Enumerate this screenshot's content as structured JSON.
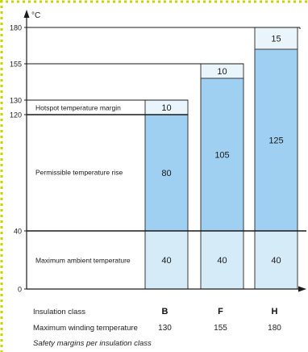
{
  "chart_data": {
    "type": "bar",
    "ylabel": "°C",
    "ylim": [
      0,
      180
    ],
    "y_ticks": [
      0,
      40,
      120,
      130,
      155,
      180
    ],
    "categories": [
      "B",
      "F",
      "H"
    ],
    "series": [
      {
        "name": "Maximum ambient temperature",
        "values": [
          40,
          40,
          40
        ]
      },
      {
        "name": "Permissible temperature rise",
        "values": [
          80,
          105,
          125
        ]
      },
      {
        "name": "Hotspot temperature margin",
        "values": [
          10,
          10,
          15
        ]
      }
    ],
    "row_labels": {
      "insulation_class": "Insulation class",
      "max_winding_temperature": "Maximum winding temperature"
    },
    "max_winding_temperatures": [
      "130",
      "155",
      "180"
    ],
    "caption": "Safety margins per insulation class",
    "colors": {
      "ambient": "#d6ebf8",
      "rise": "#9fd0f2",
      "margin": "#eaf4fb",
      "line": "#1a1a1a",
      "dotted_border": "#c8d400"
    }
  }
}
